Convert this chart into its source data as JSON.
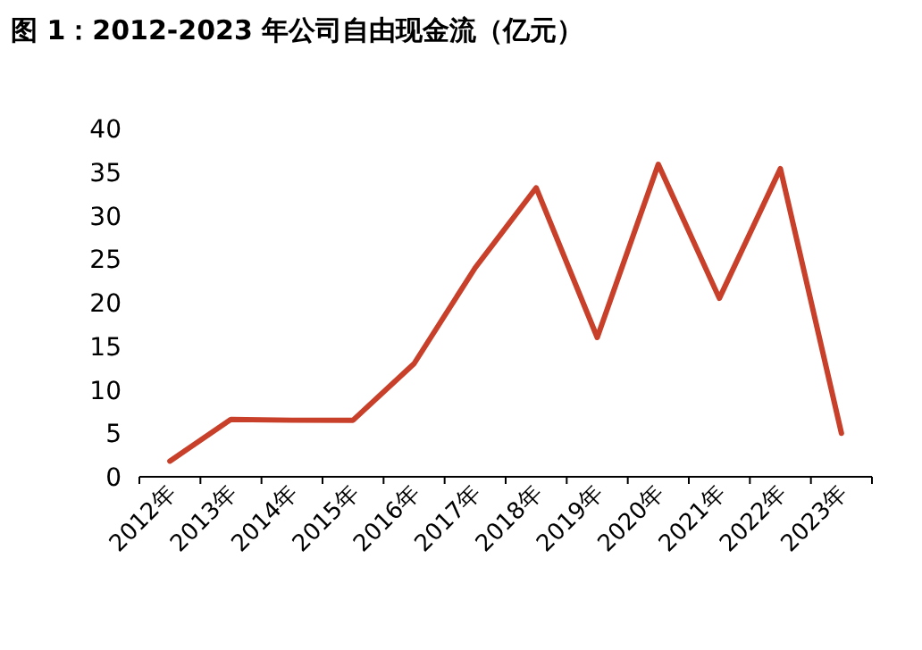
{
  "chart_data": {
    "type": "line",
    "title": "图 1：2012-2023 年公司自由现金流（亿元）",
    "categories": [
      "2012年",
      "2013年",
      "2014年",
      "2015年",
      "2016年",
      "2017年",
      "2018年",
      "2019年",
      "2020年",
      "2021年",
      "2022年",
      "2023年"
    ],
    "series": [
      {
        "color": "#c8402a",
        "values": [
          1.8,
          6.6,
          6.5,
          6.5,
          13,
          24,
          33.2,
          16,
          35.9,
          20.5,
          35.4,
          5
        ]
      }
    ],
    "ylim": [
      0,
      40
    ],
    "yticks": [
      0,
      5,
      10,
      15,
      20,
      25,
      30,
      35,
      40
    ],
    "grid": false,
    "marker": "none",
    "line_style": "solid"
  }
}
